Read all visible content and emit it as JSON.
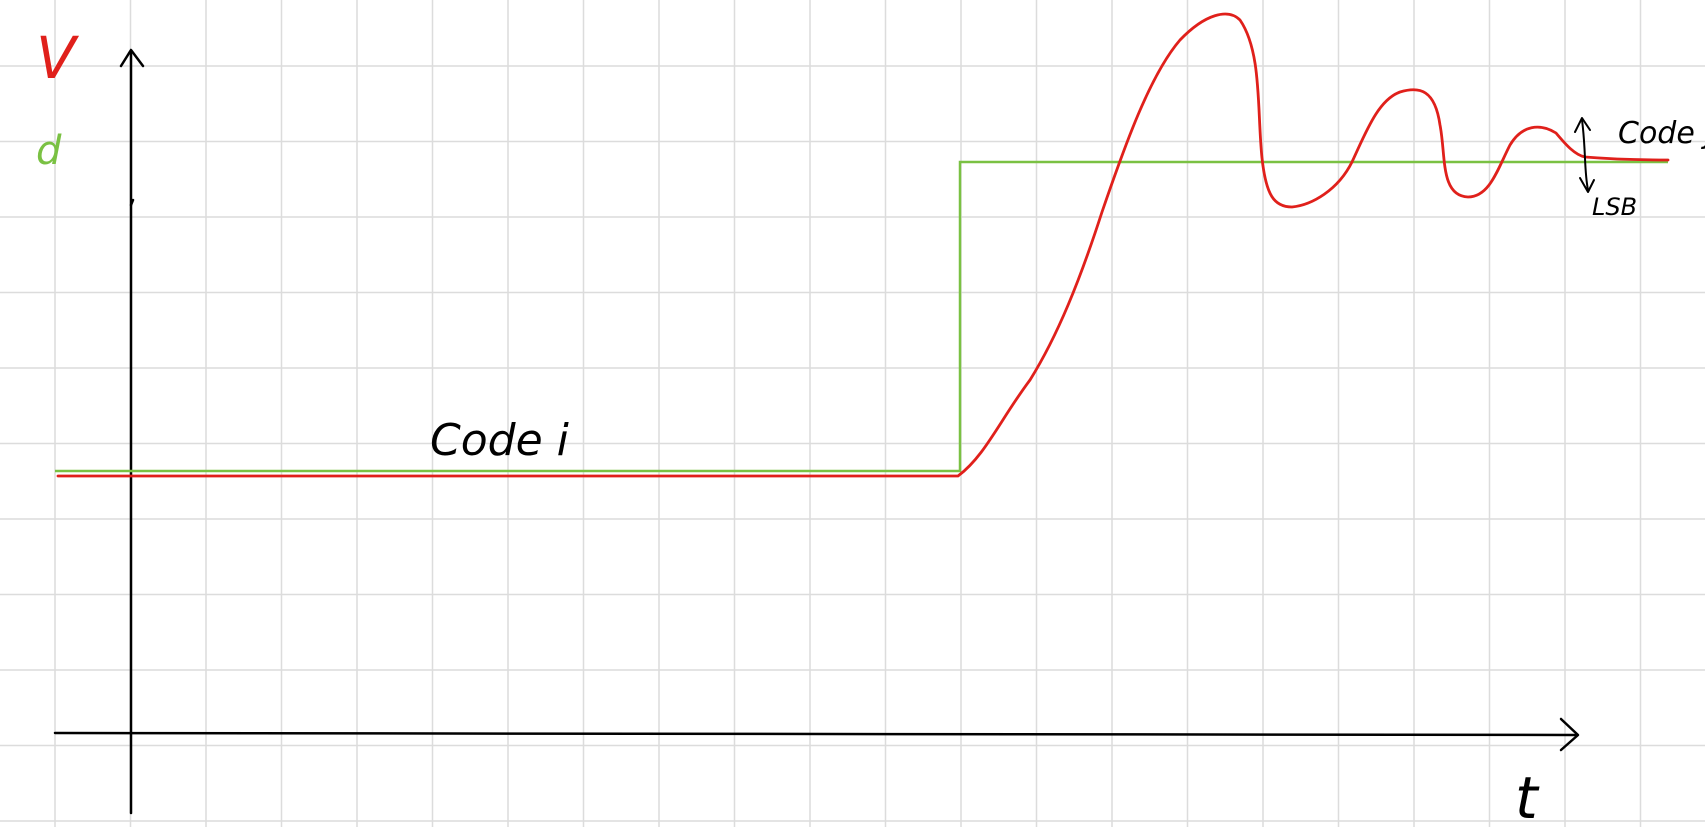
{
  "labels": {
    "y_axis_voltage": "V",
    "y_axis_code": "d",
    "x_axis": "t",
    "initial_level": "Code i",
    "final_level": "Code j",
    "settling_band": "LSB"
  },
  "colors": {
    "background": "#ffffff",
    "grid": "#dcdcdc",
    "axes": "#000000",
    "digital_code": "#7ac143",
    "analog_output": "#e0201b",
    "annotation_text": "#000000"
  }
}
